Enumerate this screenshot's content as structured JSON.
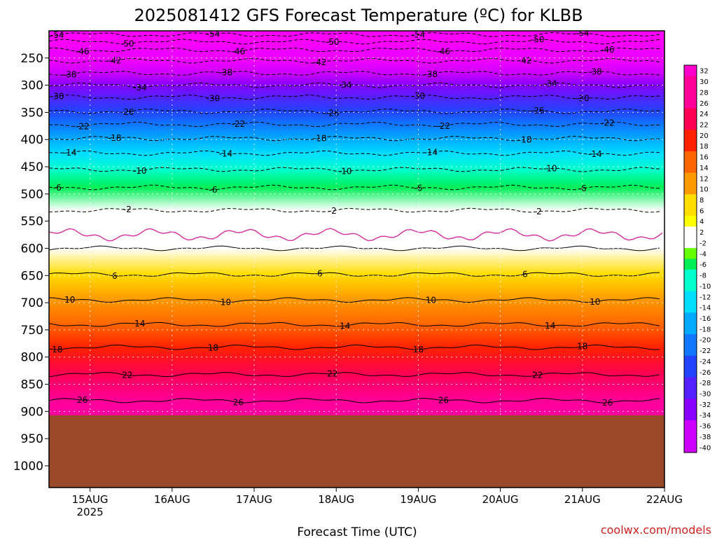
{
  "title": "2025081412 GFS Forecast Temperature (ºC) for KLBB",
  "credit": "coolwx.com/models",
  "colors": {
    "ground": "#9a4a2a",
    "credit": "#cc2222",
    "freezing_line": "#d43aa0"
  },
  "chart_data": {
    "type": "heatmap",
    "title": "2025081412 GFS Forecast Temperature (ºC) for KLBB",
    "xlabel": "Forecast Time (UTC)",
    "ylabel": "",
    "x_ticks": [
      {
        "label": "15AUG",
        "sub": "2025",
        "day": 15
      },
      {
        "label": "16AUG",
        "sub": "",
        "day": 16
      },
      {
        "label": "17AUG",
        "sub": "",
        "day": 17
      },
      {
        "label": "18AUG",
        "sub": "",
        "day": 18
      },
      {
        "label": "19AUG",
        "sub": "",
        "day": 19
      },
      {
        "label": "20AUG",
        "sub": "",
        "day": 20
      },
      {
        "label": "21AUG",
        "sub": "",
        "day": 21
      },
      {
        "label": "22AUG",
        "sub": "",
        "day": 22
      }
    ],
    "xlim": [
      14.5,
      22.0
    ],
    "y_ticks": [
      "250",
      "300",
      "350",
      "400",
      "450",
      "500",
      "550",
      "600",
      "650",
      "700",
      "750",
      "800",
      "850",
      "900",
      "950",
      "1000"
    ],
    "y_values": [
      250,
      300,
      350,
      400,
      450,
      500,
      550,
      600,
      650,
      700,
      750,
      800,
      850,
      900,
      950,
      1000
    ],
    "ylim_hPa": [
      1040,
      200
    ],
    "ground_level_hPa": 907,
    "grid": true,
    "colorbar": {
      "labels": [
        "32",
        "30",
        "28",
        "26",
        "24",
        "22",
        "20",
        "18",
        "16",
        "14",
        "12",
        "10",
        "8",
        "6",
        "4",
        "2",
        "-2",
        "-4",
        "-6",
        "-8",
        "-10",
        "-12",
        "-14",
        "-16",
        "-18",
        "-20",
        "-22",
        "-24",
        "-26",
        "-28",
        "-30",
        "-32",
        "-34",
        "-36",
        "-38",
        "-40"
      ]
    },
    "isotherm_profile": [
      {
        "temp": -54,
        "hPa": 207
      },
      {
        "temp": -50,
        "hPa": 220
      },
      {
        "temp": -46,
        "hPa": 235
      },
      {
        "temp": -42,
        "hPa": 255
      },
      {
        "temp": -38,
        "hPa": 278
      },
      {
        "temp": -34,
        "hPa": 300
      },
      {
        "temp": -30,
        "hPa": 322
      },
      {
        "temp": -26,
        "hPa": 348
      },
      {
        "temp": -22,
        "hPa": 372
      },
      {
        "temp": -18,
        "hPa": 398
      },
      {
        "temp": -14,
        "hPa": 425
      },
      {
        "temp": -10,
        "hPa": 455
      },
      {
        "temp": -6,
        "hPa": 488
      },
      {
        "temp": -2,
        "hPa": 530
      },
      {
        "temp": 2,
        "hPa": 600
      },
      {
        "temp": 6,
        "hPa": 648
      },
      {
        "temp": 10,
        "hPa": 695
      },
      {
        "temp": 14,
        "hPa": 740
      },
      {
        "temp": 18,
        "hPa": 782
      },
      {
        "temp": 22,
        "hPa": 832
      },
      {
        "temp": 26,
        "hPa": 880
      }
    ]
  }
}
